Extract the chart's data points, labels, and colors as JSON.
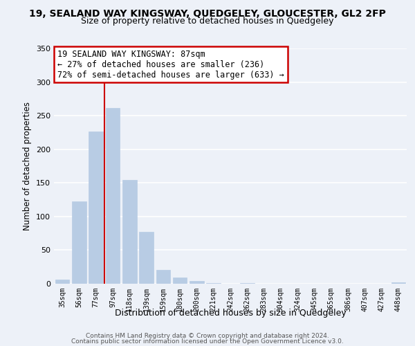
{
  "title": "19, SEALAND WAY KINGSWAY, QUEDGELEY, GLOUCESTER, GL2 2FP",
  "subtitle": "Size of property relative to detached houses in Quedgeley",
  "xlabel": "Distribution of detached houses by size in Quedgeley",
  "ylabel": "Number of detached properties",
  "bar_labels": [
    "35sqm",
    "56sqm",
    "77sqm",
    "97sqm",
    "118sqm",
    "139sqm",
    "159sqm",
    "180sqm",
    "200sqm",
    "221sqm",
    "242sqm",
    "262sqm",
    "283sqm",
    "304sqm",
    "324sqm",
    "345sqm",
    "365sqm",
    "386sqm",
    "407sqm",
    "427sqm",
    "448sqm"
  ],
  "bar_values": [
    6,
    123,
    226,
    261,
    154,
    77,
    21,
    9,
    4,
    1,
    0,
    1,
    0,
    0,
    0,
    0,
    0,
    0,
    0,
    0,
    2
  ],
  "bar_color": "#b8cce4",
  "bar_edge_color": "#b8cce4",
  "vline_color": "#cc0000",
  "ylim": [
    0,
    350
  ],
  "yticks": [
    0,
    50,
    100,
    150,
    200,
    250,
    300,
    350
  ],
  "annotation_title": "19 SEALAND WAY KINGSWAY: 87sqm",
  "annotation_line1": "← 27% of detached houses are smaller (236)",
  "annotation_line2": "72% of semi-detached houses are larger (633) →",
  "annotation_box_color": "#ffffff",
  "annotation_box_edge": "#cc0000",
  "footer_line1": "Contains HM Land Registry data © Crown copyright and database right 2024.",
  "footer_line2": "Contains public sector information licensed under the Open Government Licence v3.0.",
  "bg_color": "#edf1f8",
  "plot_bg_color": "#edf1f8",
  "grid_color": "#ffffff"
}
